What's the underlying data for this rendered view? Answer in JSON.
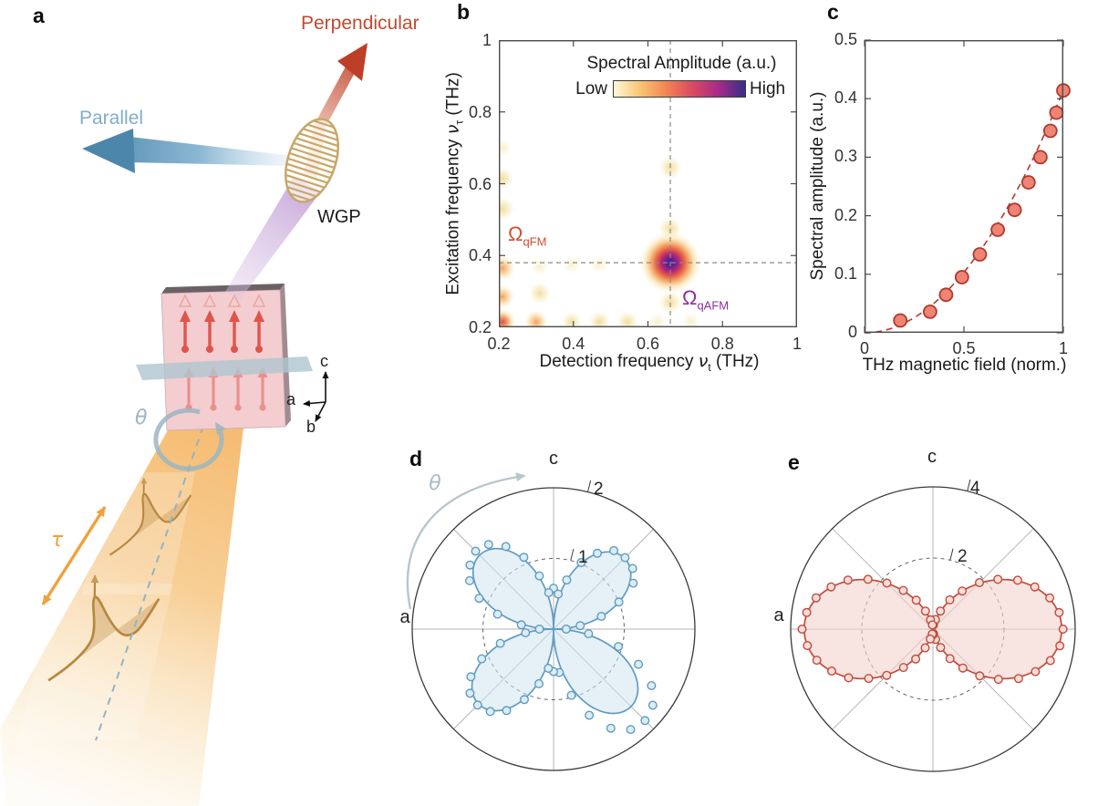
{
  "figure": {
    "background": "#ffffff",
    "panel_labels": {
      "a": "a",
      "b": "b",
      "c": "c",
      "d": "d",
      "e": "e"
    }
  },
  "panel_a": {
    "labels": {
      "perpendicular": "Perpendicular",
      "parallel": "Parallel",
      "wgp": "WGP",
      "theta": "θ",
      "tau": "τ",
      "axis_a": "a",
      "axis_b": "b",
      "axis_c": "c"
    },
    "colors": {
      "perpendicular_text": "#bf4a30",
      "parallel_text": "#82aecb",
      "red_arrow": "#bd3f27",
      "blue_arrow": "#4c86ab",
      "wgp_gold": "#c7a86b",
      "purple_beam": "#c19ed4",
      "thz_beam": "#f4b768",
      "tau_arrow": "#f0a13c",
      "theta_ring": "#9db6c2",
      "sample_face": "#f4cdd0",
      "spin_arrow": "#e0544a",
      "bc_plane": "#aec6d0"
    }
  },
  "panel_b": {
    "xlabel": {
      "prefix": "Detection frequency ",
      "symbol": "ν",
      "sub": "t",
      "suffix": " (THz)"
    },
    "ylabel": {
      "prefix": "Excitation frequency ",
      "symbol": "ν",
      "sub": "τ",
      "suffix": " (THz)"
    },
    "colorbar": {
      "title": "Spectral Amplitude (a.u.)",
      "low": "Low",
      "high": "High",
      "stops": [
        "#fdf9d8",
        "#f9c574",
        "#f28552",
        "#d94a62",
        "#a62a8a",
        "#372d8b"
      ]
    },
    "omega_qfm": {
      "symbol": "Ω",
      "sub": "qFM",
      "color": "#cf4f2e"
    },
    "omega_qafm": {
      "symbol": "Ω",
      "sub": "qAFM",
      "color": "#8c2f9b"
    }
  },
  "panel_c": {
    "xlabel": "THz magnetic field (norm.)",
    "ylabel": "Spectral amplitude (a.u.)"
  },
  "panel_d": {
    "axis_c": "c",
    "axis_a": "a",
    "theta": "θ",
    "rticks": [
      "1",
      "2"
    ]
  },
  "panel_e": {
    "axis_c": "c",
    "axis_a": "a",
    "rticks": [
      "2",
      "4"
    ]
  },
  "chart_data": [
    {
      "panel": "b",
      "type": "heatmap",
      "xlabel": "Detection frequency ν_t (THz)",
      "ylabel": "Excitation frequency ν_τ (THz)",
      "xlim": [
        0.2,
        1
      ],
      "ylim": [
        0.2,
        1
      ],
      "xticks": [
        0.2,
        0.4,
        0.6,
        0.8,
        1
      ],
      "yticks": [
        1,
        0.8,
        0.6,
        0.4,
        0.2
      ],
      "grid": false,
      "colorbar": {
        "title": "Spectral Amplitude (a.u.)",
        "low_label": "Low",
        "high_label": "High"
      },
      "crosshair": {
        "x": 0.66,
        "y": 0.38
      },
      "peak_format": "[x_THz, y_THz, intensity_0to1, radius_px]",
      "peaks": [
        [
          0.66,
          0.38,
          1.0,
          34
        ],
        [
          0.21,
          0.215,
          0.85,
          15
        ],
        [
          0.21,
          0.285,
          0.55,
          13
        ],
        [
          0.21,
          0.365,
          0.62,
          14
        ],
        [
          0.21,
          0.53,
          0.32,
          13
        ],
        [
          0.21,
          0.615,
          0.3,
          12
        ],
        [
          0.21,
          0.7,
          0.18,
          11
        ],
        [
          0.3,
          0.215,
          0.5,
          13
        ],
        [
          0.31,
          0.295,
          0.35,
          12
        ],
        [
          0.395,
          0.215,
          0.22,
          11
        ],
        [
          0.47,
          0.215,
          0.3,
          12
        ],
        [
          0.545,
          0.215,
          0.3,
          12
        ],
        [
          0.625,
          0.215,
          0.2,
          11
        ],
        [
          0.66,
          0.27,
          0.3,
          13
        ],
        [
          0.66,
          0.475,
          0.28,
          13
        ],
        [
          0.66,
          0.645,
          0.22,
          13
        ],
        [
          0.715,
          0.215,
          0.18,
          11
        ],
        [
          0.47,
          0.375,
          0.18,
          11
        ],
        [
          0.395,
          0.375,
          0.15,
          11
        ],
        [
          0.31,
          0.37,
          0.14,
          11
        ]
      ],
      "annotations": [
        {
          "text": "Ω_qFM",
          "x": 0.24,
          "y": 0.44
        },
        {
          "text": "Ω_qAFM",
          "x": 0.73,
          "y": 0.29
        }
      ]
    },
    {
      "panel": "c",
      "type": "scatter",
      "xlabel": "THz magnetic field (norm.)",
      "ylabel": "Spectral amplitude (a.u.)",
      "xlim": [
        0,
        1
      ],
      "ylim": [
        0,
        0.5
      ],
      "xticks": [
        0,
        0.5,
        1
      ],
      "yticks": [
        0,
        0.1,
        0.2,
        0.3,
        0.4,
        0.5
      ],
      "points": [
        [
          0.18,
          0.021
        ],
        [
          0.33,
          0.036
        ],
        [
          0.41,
          0.065
        ],
        [
          0.49,
          0.095
        ],
        [
          0.58,
          0.134
        ],
        [
          0.67,
          0.176
        ],
        [
          0.755,
          0.21
        ],
        [
          0.825,
          0.257
        ],
        [
          0.885,
          0.3
        ],
        [
          0.935,
          0.345
        ],
        [
          0.965,
          0.376
        ],
        [
          1.0,
          0.414
        ]
      ],
      "fit": {
        "formula": "y = 0.414·x²",
        "coefficient": 0.414,
        "style": "dashed"
      }
    },
    {
      "panel": "d",
      "type": "polar",
      "angular_axis_labels": {
        "top": "c",
        "left": "a"
      },
      "rotation_label": "θ",
      "radial_ticks": [
        1,
        2
      ],
      "rmax": 2,
      "curve": {
        "type": "four_petal_abs_sin_2theta",
        "amplitudes_by_quadrant": [
          1.42,
          1.55,
          1.5,
          1.48
        ]
      },
      "points_format": "[angle_deg_cw_from_c_axis, r]",
      "points": [
        [
          0,
          0.58
        ],
        [
          7.5,
          0.5
        ],
        [
          15,
          0.72
        ],
        [
          22.5,
          1.02
        ],
        [
          30,
          1.24
        ],
        [
          37.5,
          1.4
        ],
        [
          45,
          1.43
        ],
        [
          52.5,
          1.41
        ],
        [
          60,
          1.3
        ],
        [
          67.5,
          1.0
        ],
        [
          75,
          0.7
        ],
        [
          82.5,
          0.38
        ],
        [
          90,
          0.18
        ],
        [
          97.5,
          0.5
        ],
        [
          105,
          0.95
        ],
        [
          112.5,
          1.3
        ],
        [
          120,
          1.6
        ],
        [
          127.5,
          1.77
        ],
        [
          135,
          1.83
        ],
        [
          142.5,
          1.79
        ],
        [
          150,
          1.62
        ],
        [
          157.5,
          1.32
        ],
        [
          165,
          0.97
        ],
        [
          172.5,
          0.62
        ],
        [
          180,
          0.6
        ],
        [
          187.5,
          0.56
        ],
        [
          195,
          0.8
        ],
        [
          202.5,
          1.08
        ],
        [
          210,
          1.33
        ],
        [
          217.5,
          1.47
        ],
        [
          225,
          1.52
        ],
        [
          232.5,
          1.49
        ],
        [
          240,
          1.35
        ],
        [
          247.5,
          1.1
        ],
        [
          255,
          0.78
        ],
        [
          262.5,
          0.4
        ],
        [
          270,
          0.2
        ],
        [
          277.5,
          0.46
        ],
        [
          285,
          0.82
        ],
        [
          292.5,
          1.14
        ],
        [
          300,
          1.37
        ],
        [
          307.5,
          1.49
        ],
        [
          315,
          1.56
        ],
        [
          322.5,
          1.51
        ],
        [
          330,
          1.35
        ],
        [
          337.5,
          1.1
        ],
        [
          345,
          0.78
        ],
        [
          352.5,
          0.52
        ]
      ]
    },
    {
      "panel": "e",
      "type": "polar",
      "angular_axis_labels": {
        "top": "c",
        "left": "a"
      },
      "radial_ticks": [
        2,
        4
      ],
      "rmax": 4,
      "curve": {
        "type": "two_lobe_sin_squared",
        "amplitude": 3.62
      },
      "points_format": "[angle_deg_cw_from_c_axis, r]",
      "points": [
        [
          0,
          0.15
        ],
        [
          7.5,
          0.12
        ],
        [
          15,
          0.28
        ],
        [
          22.5,
          0.55
        ],
        [
          30,
          0.95
        ],
        [
          37.5,
          1.35
        ],
        [
          45,
          1.85
        ],
        [
          52.5,
          2.3
        ],
        [
          60,
          2.75
        ],
        [
          67.5,
          3.1
        ],
        [
          75,
          3.4
        ],
        [
          82.5,
          3.58
        ],
        [
          90,
          3.66
        ],
        [
          97.5,
          3.6
        ],
        [
          105,
          3.42
        ],
        [
          112.5,
          3.12
        ],
        [
          120,
          2.78
        ],
        [
          127.5,
          2.32
        ],
        [
          135,
          1.86
        ],
        [
          142.5,
          1.38
        ],
        [
          150,
          0.96
        ],
        [
          157.5,
          0.56
        ],
        [
          165,
          0.3
        ],
        [
          172.5,
          0.13
        ],
        [
          180,
          0.16
        ],
        [
          187.5,
          0.14
        ],
        [
          195,
          0.29
        ],
        [
          202.5,
          0.57
        ],
        [
          210,
          0.97
        ],
        [
          217.5,
          1.36
        ],
        [
          225,
          1.84
        ],
        [
          232.5,
          2.28
        ],
        [
          240,
          2.74
        ],
        [
          247.5,
          3.08
        ],
        [
          255,
          3.38
        ],
        [
          262.5,
          3.56
        ],
        [
          270,
          3.68
        ],
        [
          277.5,
          3.58
        ],
        [
          285,
          3.4
        ],
        [
          292.5,
          3.1
        ],
        [
          300,
          2.76
        ],
        [
          307.5,
          2.3
        ],
        [
          315,
          1.83
        ],
        [
          322.5,
          1.37
        ],
        [
          330,
          0.94
        ],
        [
          337.5,
          0.55
        ],
        [
          345,
          0.27
        ],
        [
          352.5,
          0.12
        ]
      ]
    }
  ]
}
